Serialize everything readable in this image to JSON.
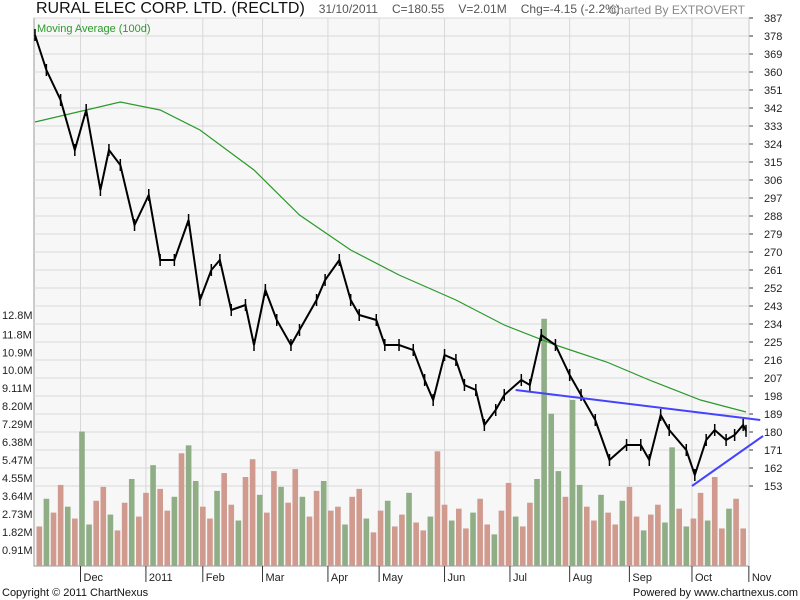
{
  "header": {
    "title": "RURAL ELEC CORP. LTD. (RECLTD)",
    "date": "31/10/2011",
    "close": "C=180.55",
    "volume": "V=2.01M",
    "change": "Chg=-4.15 (-2.2%)",
    "credit": "Charted By EXTROVERT"
  },
  "footer": {
    "copyright": "Copyright © 2011 ChartNexus",
    "powered": "Powered by www.chartnexus.com"
  },
  "colors": {
    "price": "#000000",
    "ma": "#2a9a2a",
    "trend": "#4444ff",
    "vol_up": "#8fae86",
    "vol_down": "#d09a8e",
    "grid": "#d8d8d8",
    "bg": "#f7f7f7"
  },
  "chart_data": {
    "type": "line",
    "title": "RURAL ELEC CORP. LTD. (RECLTD)",
    "legend": [
      "Moving Average (100d)"
    ],
    "legend_placement": "top-left",
    "x_unit": "trading day (0 = early Nov 2010)",
    "xlim": [
      0,
      250
    ],
    "price_axis": {
      "side": "right",
      "ylim": [
        113,
        387
      ],
      "ticks": [
        "387",
        "378",
        "369",
        "360",
        "351",
        "342",
        "333",
        "324",
        "315",
        "306",
        "297",
        "288",
        "279",
        "270",
        "261",
        "252",
        "243",
        "234",
        "225",
        "216",
        "207",
        "198",
        "189",
        "180",
        "171",
        "162",
        "153"
      ]
    },
    "volume_axis": {
      "side": "left",
      "unit": "M",
      "ylim": [
        0,
        13
      ],
      "ticks": [
        "12.8M",
        "11.8M",
        "10.9M",
        "10.0M",
        "9.11M",
        "8.20M",
        "7.29M",
        "6.38M",
        "5.47M",
        "4.55M",
        "3.64M",
        "2.73M",
        "1.82M",
        "0.91M"
      ]
    },
    "months": [
      {
        "label": "Dec",
        "day": 16
      },
      {
        "label": "2011",
        "day": 39
      },
      {
        "label": "Feb",
        "day": 59
      },
      {
        "label": "Mar",
        "day": 80
      },
      {
        "label": "Apr",
        "day": 103
      },
      {
        "label": "May",
        "day": 121
      },
      {
        "label": "Jun",
        "day": 144
      },
      {
        "label": "Jul",
        "day": 167
      },
      {
        "label": "Aug",
        "day": 188
      },
      {
        "label": "Sep",
        "day": 209
      },
      {
        "label": "Oct",
        "day": 231
      },
      {
        "label": "Nov",
        "day": 251
      }
    ],
    "price": [
      [
        0,
        378.5
      ],
      [
        4,
        361
      ],
      [
        9,
        346
      ],
      [
        14,
        321
      ],
      [
        18,
        341
      ],
      [
        23,
        301
      ],
      [
        26,
        321
      ],
      [
        30,
        313.5
      ],
      [
        35,
        283.5
      ],
      [
        40,
        298.5
      ],
      [
        44,
        266
      ],
      [
        49,
        266
      ],
      [
        54,
        286
      ],
      [
        58,
        246
      ],
      [
        62,
        261
      ],
      [
        65,
        266
      ],
      [
        69,
        241
      ],
      [
        74,
        243.5
      ],
      [
        77,
        223.5
      ],
      [
        81,
        251
      ],
      [
        85,
        236
      ],
      [
        90,
        223.5
      ],
      [
        93,
        231
      ],
      [
        99,
        246
      ],
      [
        102,
        256
      ],
      [
        107,
        266
      ],
      [
        111,
        246
      ],
      [
        114,
        238.5
      ],
      [
        120,
        236
      ],
      [
        123,
        223.5
      ],
      [
        128,
        223.5
      ],
      [
        133,
        221
      ],
      [
        137,
        206
      ],
      [
        140,
        196
      ],
      [
        144,
        218.5
      ],
      [
        148,
        216
      ],
      [
        151,
        203.5
      ],
      [
        155,
        201
      ],
      [
        158,
        183.5
      ],
      [
        162,
        191
      ],
      [
        165,
        198.5
      ],
      [
        171,
        206
      ],
      [
        174,
        203.5
      ],
      [
        178,
        228.5
      ],
      [
        183,
        223.5
      ],
      [
        188,
        208.5
      ],
      [
        192,
        198.5
      ],
      [
        197,
        186
      ],
      [
        202,
        166
      ],
      [
        208,
        173.5
      ],
      [
        213,
        173.5
      ],
      [
        216,
        166
      ],
      [
        220,
        188.5
      ],
      [
        223,
        181
      ],
      [
        229,
        171
      ],
      [
        232,
        158.5
      ],
      [
        236,
        176
      ],
      [
        239,
        181
      ],
      [
        243,
        176
      ],
      [
        246,
        178.5
      ],
      [
        249,
        183.5
      ],
      [
        250,
        180.55
      ]
    ],
    "series": [
      {
        "name": "Moving Average (100d)",
        "points": [
          [
            0,
            335
          ],
          [
            30,
            345
          ],
          [
            44,
            341
          ],
          [
            58,
            331
          ],
          [
            77,
            311
          ],
          [
            93,
            288.5
          ],
          [
            111,
            271
          ],
          [
            128,
            258.5
          ],
          [
            148,
            246
          ],
          [
            165,
            233.5
          ],
          [
            183,
            223.5
          ],
          [
            201,
            215
          ],
          [
            216,
            206
          ],
          [
            234,
            196
          ],
          [
            250,
            190
          ]
        ]
      }
    ],
    "trendlines": [
      [
        [
          169,
          201
        ],
        [
          255,
          186
        ]
      ],
      [
        [
          231,
          153
        ],
        [
          256,
          178
        ]
      ]
    ],
    "volume": [
      2.1,
      3.5,
      2.8,
      4.2,
      3.1,
      2.5,
      6.9,
      2.2,
      3.4,
      4.1,
      2.7,
      1.9,
      3.3,
      4.5,
      2.6,
      3.8,
      5.2,
      4.0,
      2.9,
      3.6,
      5.8,
      6.2,
      4.4,
      3.1,
      2.5,
      3.9,
      4.8,
      3.2,
      2.4,
      4.6,
      5.5,
      3.7,
      2.8,
      4.9,
      4.1,
      3.3,
      5.0,
      3.6,
      2.6,
      3.9,
      4.4,
      2.9,
      3.1,
      2.2,
      3.6,
      4.0,
      2.5,
      1.8,
      2.9,
      3.4,
      2.1,
      2.7,
      3.8,
      2.3,
      1.9,
      2.6,
      5.9,
      3.2,
      2.4,
      3.0,
      2.0,
      2.8,
      3.5,
      2.2,
      1.7,
      2.9,
      4.3,
      2.6,
      2.1,
      3.3,
      4.5,
      12.6,
      7.8,
      4.9,
      3.6,
      8.5,
      4.2,
      3.1,
      2.4,
      3.7,
      2.8,
      2.2,
      3.4,
      4.1,
      2.6,
      1.9,
      2.7,
      3.2,
      2.3,
      6.1,
      3.0,
      2.1,
      2.5,
      3.8,
      2.4,
      4.6,
      2.0,
      3.0,
      3.5,
      2.0
    ]
  }
}
